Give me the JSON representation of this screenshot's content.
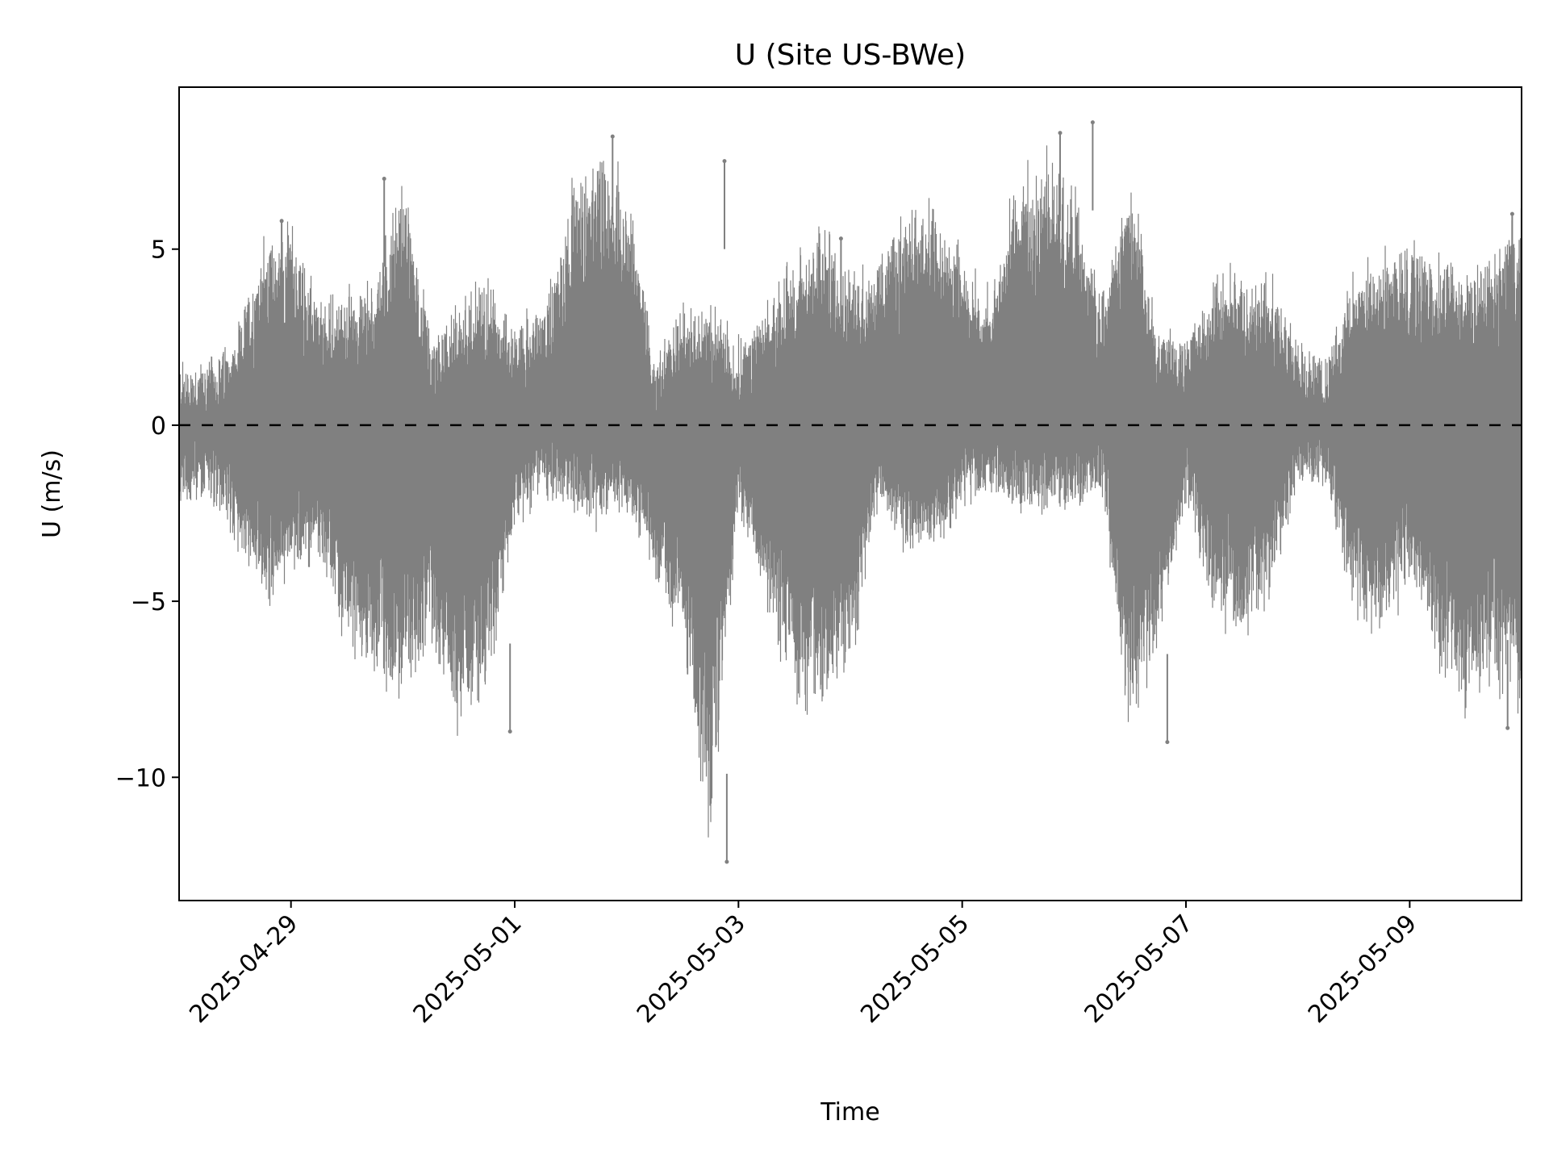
{
  "chart_data": {
    "type": "scatter",
    "title": "U (Site US-BWe)",
    "xlabel": "Time",
    "ylabel": "U (m/s)",
    "xlim": [
      "2025-04-28",
      "2025-05-10"
    ],
    "ylim": [
      -13.5,
      9.6
    ],
    "x_ticks": [
      "2025-04-29",
      "2025-05-01",
      "2025-05-03",
      "2025-05-05",
      "2025-05-07",
      "2025-05-09"
    ],
    "y_ticks": [
      5,
      0,
      -5,
      -10
    ],
    "y_tick_labels": [
      "5",
      "0",
      "−5",
      "−10"
    ],
    "grid": false,
    "legend": "none",
    "point_color": "#808080",
    "reference_line": {
      "y": 0,
      "style": "dashed",
      "color": "#000000"
    },
    "envelope": {
      "x": [
        "2025-04-28 00:00",
        "2025-04-28 06:00",
        "2025-04-28 12:00",
        "2025-04-28 18:00",
        "2025-04-29 00:00",
        "2025-04-29 06:00",
        "2025-04-29 12:00",
        "2025-04-29 18:00",
        "2025-04-30 00:00",
        "2025-04-30 06:00",
        "2025-04-30 12:00",
        "2025-04-30 18:00",
        "2025-05-01 00:00",
        "2025-05-01 06:00",
        "2025-05-01 12:00",
        "2025-05-01 18:00",
        "2025-05-02 00:00",
        "2025-05-02 06:00",
        "2025-05-02 12:00",
        "2025-05-02 18:00",
        "2025-05-03 00:00",
        "2025-05-03 06:00",
        "2025-05-03 12:00",
        "2025-05-03 18:00",
        "2025-05-04 00:00",
        "2025-05-04 06:00",
        "2025-05-04 12:00",
        "2025-05-04 18:00",
        "2025-05-05 00:00",
        "2025-05-05 06:00",
        "2025-05-05 12:00",
        "2025-05-05 18:00",
        "2025-05-06 00:00",
        "2025-05-06 06:00",
        "2025-05-06 12:00",
        "2025-05-06 18:00",
        "2025-05-07 00:00",
        "2025-05-07 06:00",
        "2025-05-07 12:00",
        "2025-05-07 18:00",
        "2025-05-08 00:00",
        "2025-05-08 06:00",
        "2025-05-08 12:00",
        "2025-05-08 18:00",
        "2025-05-09 00:00",
        "2025-05-09 06:00",
        "2025-05-09 12:00",
        "2025-05-09 18:00",
        "2025-05-10 00:00"
      ],
      "upper": [
        0.8,
        0.9,
        1.5,
        4.5,
        5.0,
        2.5,
        3.0,
        3.5,
        6.5,
        1.5,
        2.5,
        3.5,
        2.0,
        2.5,
        6.0,
        7.0,
        6.5,
        1.0,
        2.5,
        2.5,
        1.5,
        2.5,
        4.0,
        5.0,
        3.5,
        4.0,
        5.5,
        5.5,
        4.0,
        3.0,
        6.5,
        7.0,
        6.0,
        3.0,
        6.5,
        2.0,
        1.8,
        3.5,
        3.5,
        3.5,
        1.5,
        1.0,
        3.5,
        4.0,
        4.5,
        4.0,
        3.5,
        4.0,
        5.5
      ],
      "lower": [
        -1.5,
        -1.0,
        -2.5,
        -4.5,
        -3.5,
        -3.0,
        -5.5,
        -6.5,
        -7.0,
        -5.5,
        -8.0,
        -7.0,
        -2.0,
        -1.0,
        -1.5,
        -2.0,
        -1.5,
        -3.5,
        -5.5,
        -11.5,
        -1.5,
        -4.5,
        -7.0,
        -7.5,
        -6.5,
        -1.5,
        -3.0,
        -2.5,
        -1.5,
        -0.8,
        -1.5,
        -1.5,
        -1.5,
        -1.0,
        -8.5,
        -5.5,
        -1.5,
        -4.5,
        -5.5,
        -4.0,
        -0.8,
        -0.8,
        -4.5,
        -5.5,
        -3.5,
        -6.0,
        -7.5,
        -6.5,
        -7.5
      ]
    },
    "extremes": [
      {
        "x": "2025-04-28 22:00",
        "y": 5.8
      },
      {
        "x": "2025-04-29 20:00",
        "y": 7.0
      },
      {
        "x": "2025-05-01 21:00",
        "y": 8.2
      },
      {
        "x": "2025-05-02 21:00",
        "y": 7.5
      },
      {
        "x": "2025-05-02 21:30",
        "y": -12.4
      },
      {
        "x": "2025-05-03 22:00",
        "y": 5.3
      },
      {
        "x": "2025-05-05 21:00",
        "y": 8.3
      },
      {
        "x": "2025-05-06 04:00",
        "y": 8.6
      },
      {
        "x": "2025-05-06 20:00",
        "y": -9.0
      },
      {
        "x": "2025-04-30 23:00",
        "y": -8.7
      },
      {
        "x": "2025-05-09 21:00",
        "y": -8.6
      },
      {
        "x": "2025-05-09 22:00",
        "y": 6.0
      }
    ]
  }
}
